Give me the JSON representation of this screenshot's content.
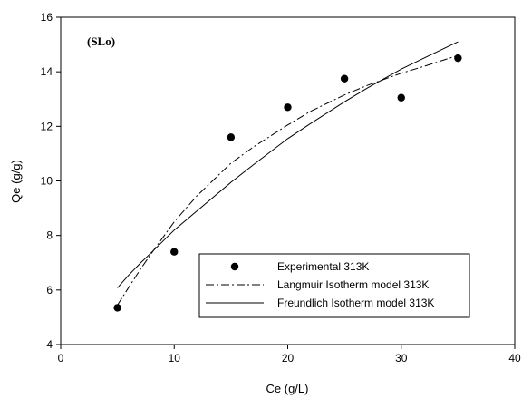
{
  "chart_data": {
    "type": "scatter",
    "title": "",
    "annotation": "(SLo)",
    "xlabel": "Ce (g/L)",
    "ylabel": "Qe (g/g)",
    "xlim": [
      0,
      40
    ],
    "ylim": [
      4,
      16
    ],
    "xticks": [
      0,
      10,
      20,
      30,
      40
    ],
    "yticks": [
      4,
      6,
      8,
      10,
      12,
      14,
      16
    ],
    "grid": false,
    "legend_position": "bottom-right",
    "series": [
      {
        "name": "Experimental 313K",
        "kind": "markers",
        "color": "#000000",
        "x": [
          5,
          10,
          15,
          20,
          25,
          30,
          35
        ],
        "y": [
          5.35,
          7.4,
          11.6,
          12.7,
          13.75,
          13.05,
          14.5
        ]
      },
      {
        "name": "Langmuir Isotherm model 313K",
        "kind": "dashdot-line",
        "color": "#000000",
        "x": [
          5,
          6,
          7,
          8,
          10,
          12,
          15,
          17,
          20,
          22,
          25,
          27,
          30,
          32,
          35
        ],
        "y": [
          5.45,
          6.1,
          6.75,
          7.35,
          8.5,
          9.45,
          10.65,
          11.25,
          12.05,
          12.55,
          13.15,
          13.5,
          13.95,
          14.2,
          14.6
        ]
      },
      {
        "name": "Freundlich Isotherm model 313K",
        "kind": "solid-line",
        "color": "#000000",
        "x": [
          5,
          6,
          7,
          8,
          10,
          12,
          15,
          17,
          20,
          22,
          25,
          27,
          30,
          32,
          35
        ],
        "y": [
          6.08,
          6.55,
          6.98,
          7.38,
          8.2,
          8.9,
          9.95,
          10.6,
          11.55,
          12.1,
          12.9,
          13.4,
          14.1,
          14.5,
          15.1
        ]
      }
    ]
  }
}
